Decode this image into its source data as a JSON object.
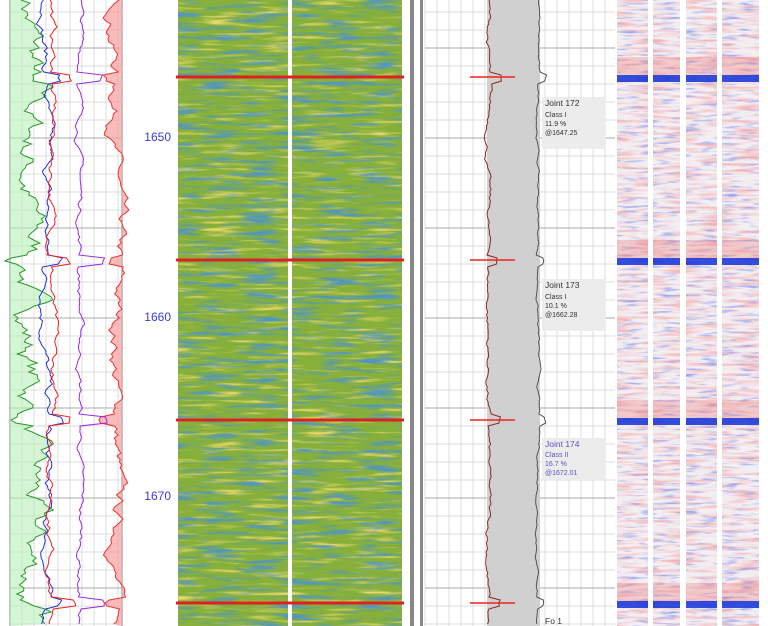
{
  "depth_track": {
    "labels": [
      1650,
      1660,
      1670
    ]
  },
  "joints": [
    {
      "name": "Joint 172",
      "class": "Class I",
      "loss": "11.9 %",
      "depth": "@1647.25"
    },
    {
      "name": "Joint 173",
      "class": "Class I",
      "loss": "10.1 %",
      "depth": "@1662.28"
    },
    {
      "name": "Joint 174",
      "class": "Class II",
      "loss": "16.7 %",
      "depth": "@1672.01"
    }
  ],
  "footer_label": "Fo 1"
}
